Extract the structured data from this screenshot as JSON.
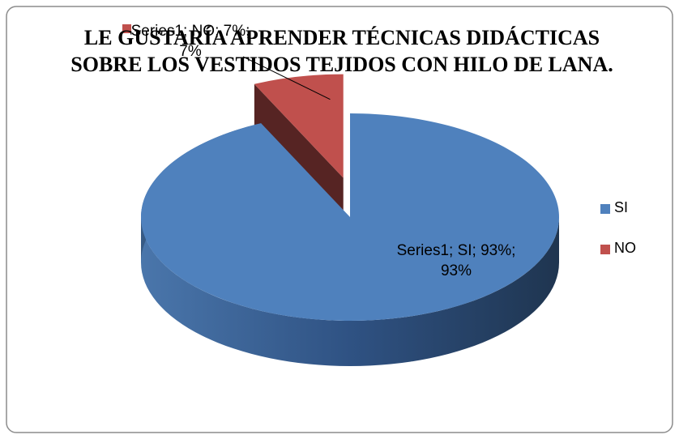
{
  "chart_data": {
    "type": "pie3d",
    "title": "LE GUSTARÍA APRENDER  TÉCNICAS DIDÁCTICAS SOBRE LOS VESTIDOS TEJIDOS CON HILO DE LANA.",
    "categories": [
      "SI",
      "NO"
    ],
    "values": [
      93,
      7
    ],
    "value_labels": [
      "Series1; SI; 93%; 93%",
      "Series1; NO; 7%; 7%"
    ],
    "colors": [
      "#4f81bd",
      "#c0504d"
    ],
    "legend": "right"
  }
}
